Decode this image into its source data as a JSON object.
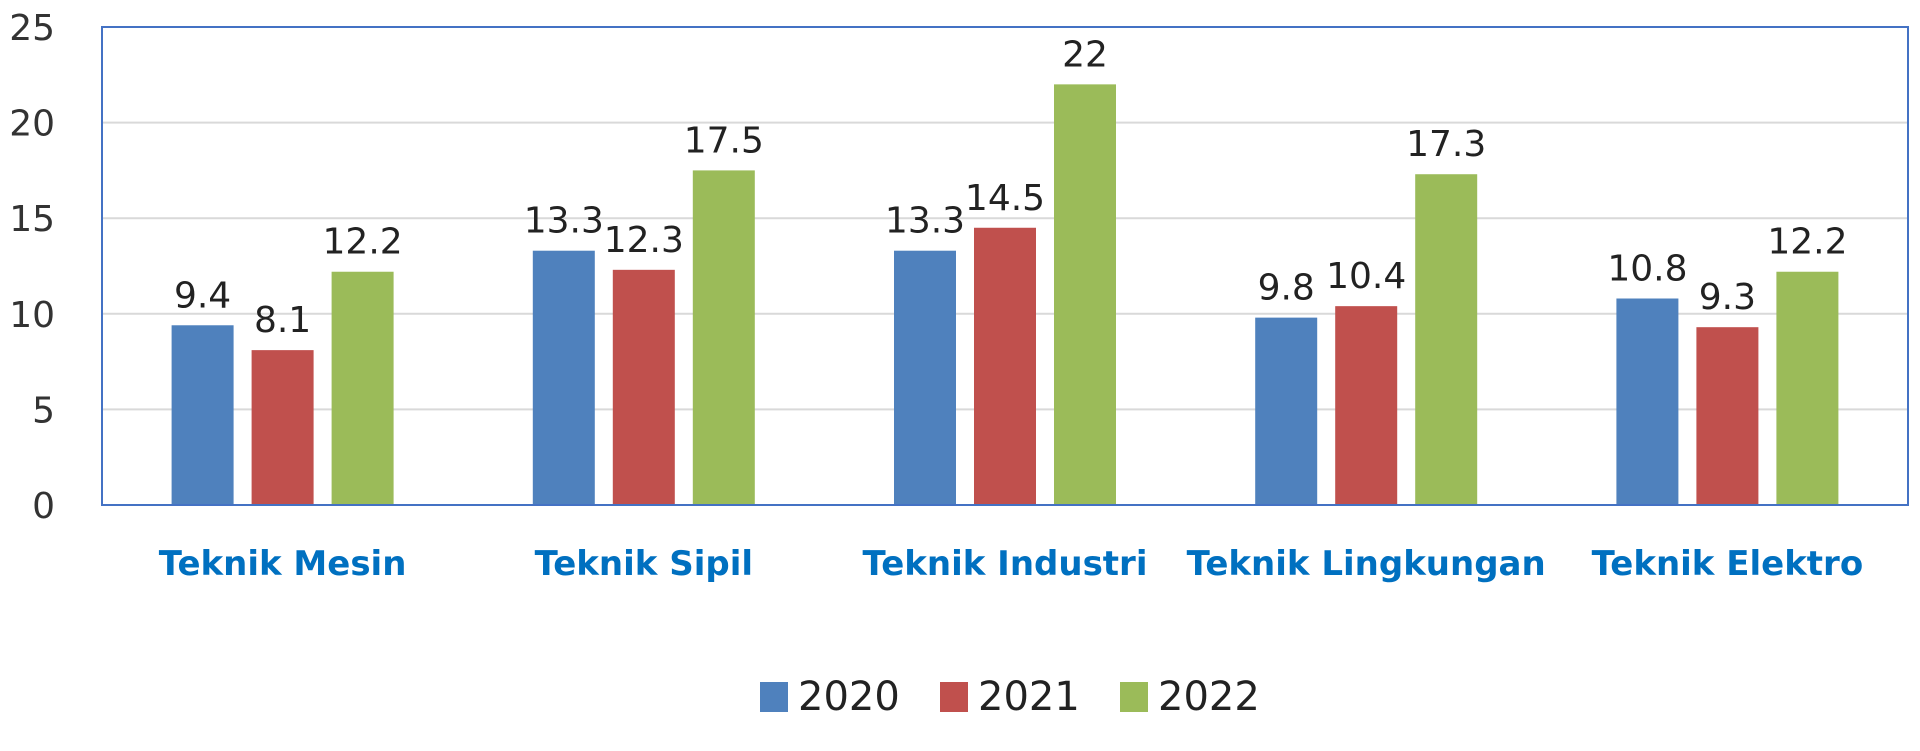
{
  "chart_data": {
    "type": "bar",
    "categories": [
      "Teknik Mesin",
      "Teknik Sipil",
      "Teknik Industri",
      "Teknik Lingkungan",
      "Teknik Elektro"
    ],
    "series": [
      {
        "name": "2020",
        "color": "#4f81bd",
        "values": [
          9.4,
          13.3,
          13.3,
          9.8,
          10.8
        ],
        "labels": [
          "9.4",
          "13.3",
          "13.3",
          "9.8",
          "10.8"
        ]
      },
      {
        "name": "2021",
        "color": "#c0504d",
        "values": [
          8.1,
          12.3,
          14.5,
          10.4,
          9.3
        ],
        "labels": [
          "8.1",
          "12.3",
          "14.5",
          "10.4",
          "9.3"
        ]
      },
      {
        "name": "2022",
        "color": "#9bbb59",
        "values": [
          12.2,
          17.5,
          22,
          17.3,
          12.2
        ],
        "labels": [
          "12.2",
          "17.5",
          "22",
          "17.3",
          "12.2"
        ]
      }
    ],
    "ylim": [
      0,
      25
    ],
    "yticks": [
      "0",
      "5",
      "10",
      "15",
      "20",
      "25"
    ],
    "grid": true,
    "legend_position": "bottom-center",
    "category_label_color": "#0070c0",
    "plot_border_color": "#4472c4",
    "gridline_color": "#d9d9d9"
  }
}
